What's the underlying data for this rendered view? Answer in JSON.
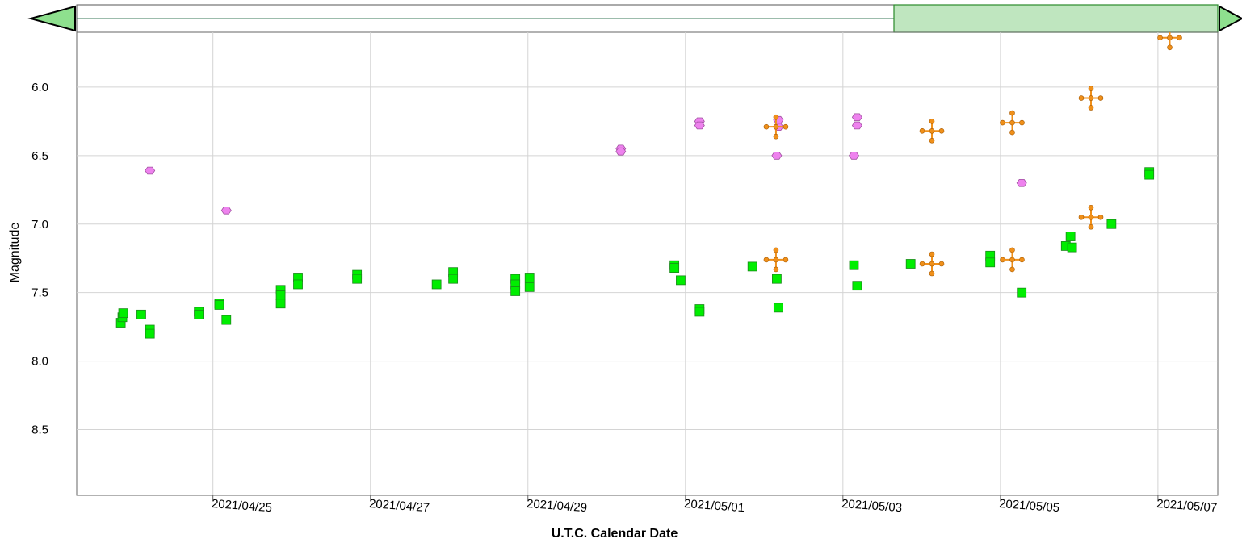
{
  "chart_data": {
    "type": "scatter",
    "x_label": "U.T.C. Calendar Date",
    "y_label": "Magnitude",
    "xlim": [
      59327.27,
      59341.76
    ],
    "xticks": [
      {
        "value": 59329,
        "label": "2021/04/25"
      },
      {
        "value": 59331,
        "label": "2021/04/27"
      },
      {
        "value": 59333,
        "label": "2021/04/29"
      },
      {
        "value": 59335,
        "label": "2021/05/01"
      },
      {
        "value": 59337,
        "label": "2021/05/03"
      },
      {
        "value": 59339,
        "label": "2021/05/05"
      },
      {
        "value": 59341,
        "label": "2021/05/07"
      }
    ],
    "ylim": [
      8.98,
      5.6
    ],
    "yticks": [
      {
        "value": 6,
        "label": "6.0"
      },
      6.5,
      {
        "value": 7,
        "label": "7.0"
      },
      7.5,
      {
        "value": 8,
        "label": "8.0"
      },
      8.5
    ],
    "grid": true,
    "series": [
      {
        "color": "#00ee00",
        "marker": "square",
        "x": [
          59327.83,
          59327.85,
          59327.86,
          59328.09,
          59328.2,
          59328.2,
          59328.82,
          59328.82,
          59329.08,
          59329.08,
          59329.17,
          59329.86,
          59329.86,
          59329.86,
          59330.08,
          59330.08,
          59330.83,
          59330.83,
          59331.84,
          59332.05,
          59332.05,
          59332.84,
          59332.84,
          59332.84,
          59333.02,
          59333.02,
          59334.86,
          59334.86,
          59334.94,
          59335.18,
          59335.18,
          59335.85,
          59336.16,
          59336.18,
          59337.14,
          59337.18,
          59337.86,
          59338.87,
          59338.87,
          59339.27,
          59339.83,
          59339.89,
          59339.91,
          59340.41,
          59340.89,
          59340.89
        ],
        "values": [
          7.72,
          7.68,
          7.65,
          7.66,
          7.77,
          7.8,
          7.64,
          7.66,
          7.58,
          7.59,
          7.7,
          7.48,
          7.52,
          7.58,
          7.39,
          7.44,
          7.37,
          7.4,
          7.44,
          7.35,
          7.4,
          7.4,
          7.44,
          7.49,
          7.39,
          7.46,
          7.3,
          7.32,
          7.41,
          7.62,
          7.64,
          7.31,
          7.4,
          7.61,
          7.3,
          7.45,
          7.29,
          7.23,
          7.28,
          7.5,
          7.16,
          7.09,
          7.17,
          7,
          6.62,
          6.64
        ]
      },
      {
        "color": "#ee82ee",
        "marker": "hexagon",
        "x": [
          59328.2,
          59329.17,
          59334.18,
          59334.18,
          59335.18,
          59335.18,
          59336.18,
          59336.18,
          59336.16,
          59337.18,
          59337.18,
          59337.14,
          59339.27
        ],
        "values": [
          6.61,
          6.9,
          6.45,
          6.47,
          6.25,
          6.28,
          6.24,
          6.29,
          6.5,
          6.22,
          6.28,
          6.5,
          6.7
        ]
      },
      {
        "color": "#f0901a",
        "marker": "cross",
        "x": [
          59336.15,
          59336.15,
          59338.13,
          59338.13,
          59339.15,
          59339.15,
          59340.15,
          59340.15,
          59341.15
        ],
        "values": [
          6.29,
          7.26,
          6.32,
          7.29,
          6.26,
          7.26,
          6.08,
          6.95,
          5.64
        ]
      }
    ]
  }
}
